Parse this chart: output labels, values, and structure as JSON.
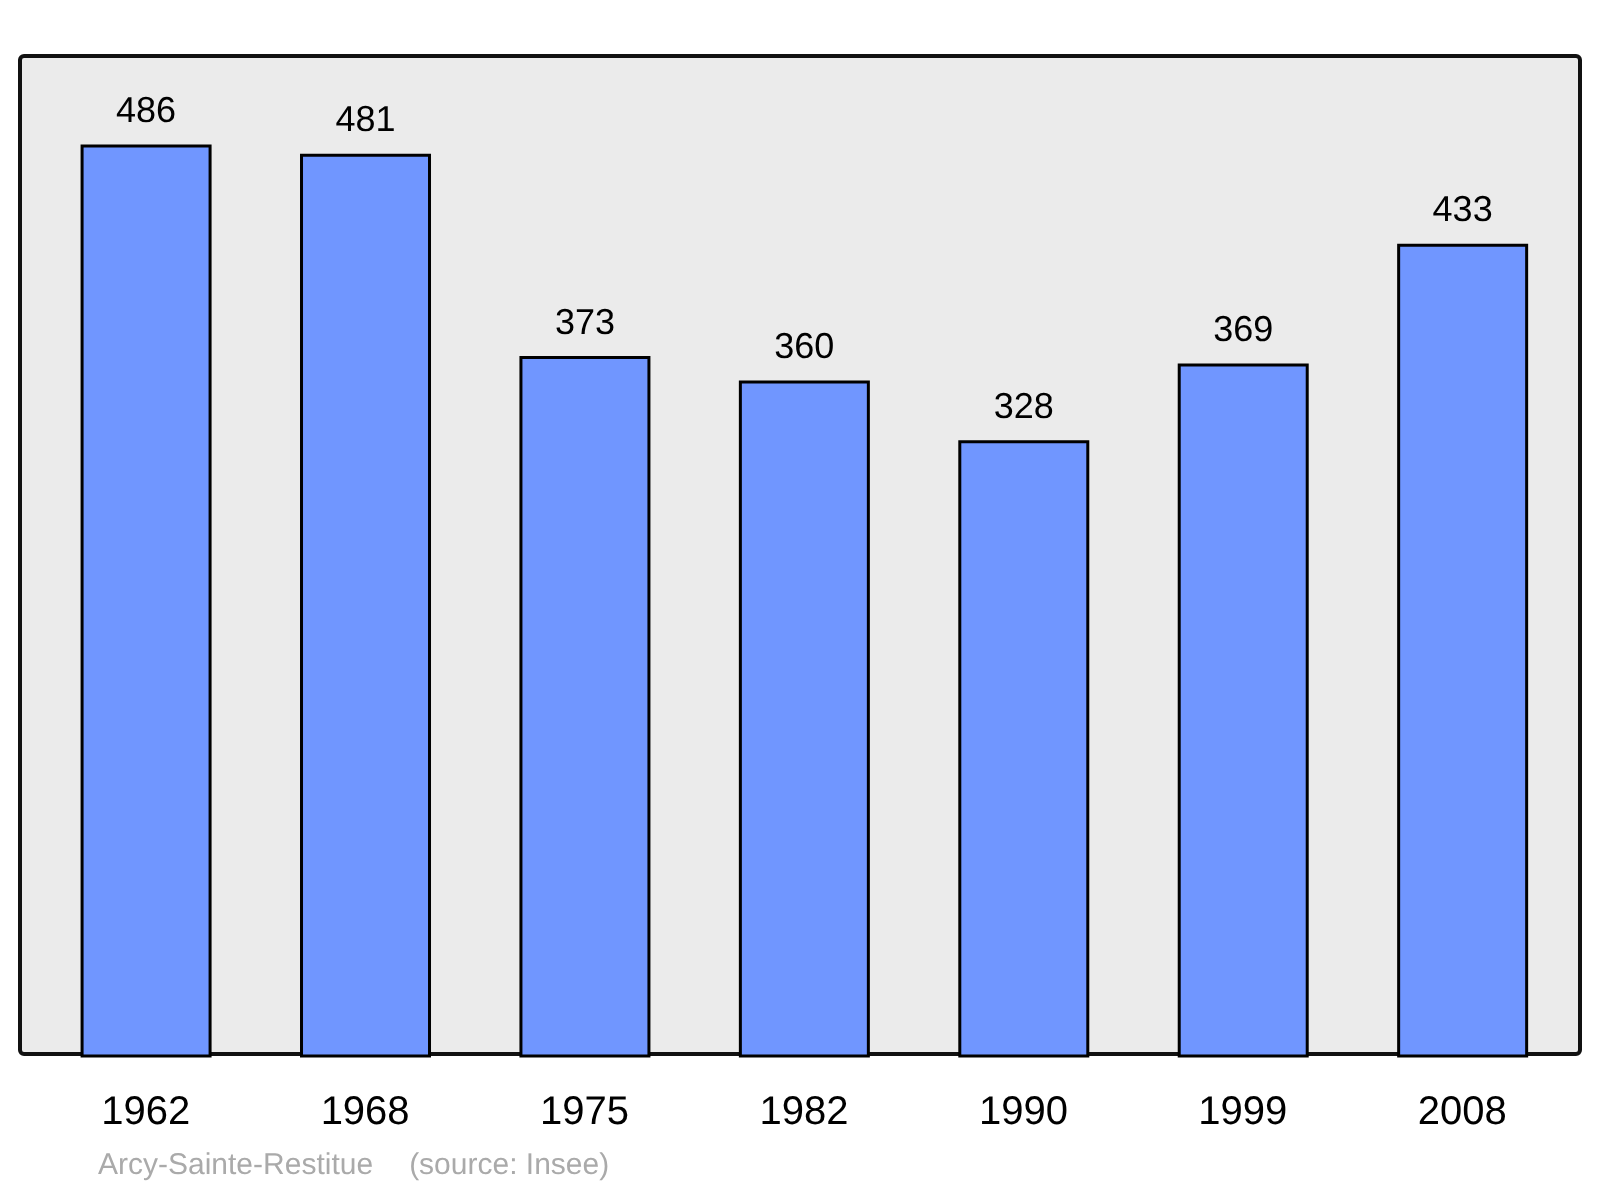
{
  "chart_data": {
    "type": "bar",
    "categories": [
      "1962",
      "1968",
      "1975",
      "1982",
      "1990",
      "1999",
      "2008"
    ],
    "values": [
      486,
      481,
      373,
      360,
      328,
      369,
      433
    ],
    "color": "#7096ff",
    "data_labels": true,
    "grid": false,
    "legend": false,
    "annotations": [
      "Arcy-Sainte-Restitue",
      "(source: Insee)"
    ]
  }
}
